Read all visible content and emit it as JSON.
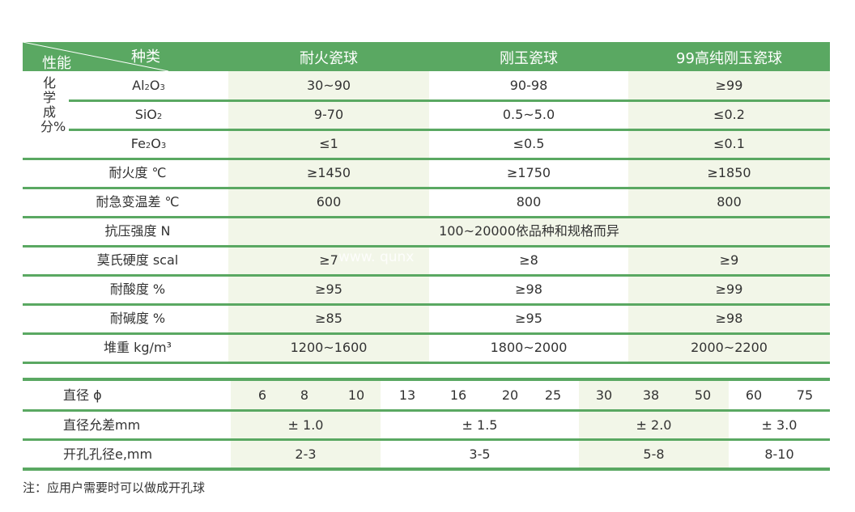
{
  "table1": {
    "header": {
      "corner_top": "种类",
      "corner_bottom": "性能",
      "columns": [
        "耐火瓷球",
        "刚玉瓷球",
        "99高纯刚玉瓷球"
      ]
    },
    "chem_group_label": "化学成分%",
    "chem_rows": [
      {
        "label_main": "Al",
        "sub1": "2",
        "mid": "O",
        "sub2": "3",
        "values": [
          "30~90",
          "90-98",
          "≥99"
        ]
      },
      {
        "label_main": "SiO",
        "sub1": "2",
        "mid": "",
        "sub2": "",
        "values": [
          "9-70",
          "0.5~5.0",
          "≤0.2"
        ]
      },
      {
        "label_main": "Fe",
        "sub1": "2",
        "mid": "O",
        "sub2": "3",
        "values": [
          "≤1",
          "≤0.5",
          "≤0.1"
        ]
      }
    ],
    "rows": [
      {
        "label": "耐火度 ℃",
        "values": [
          "≥1450",
          "≥1750",
          "≥1850"
        ]
      },
      {
        "label": "耐急变温差 ℃",
        "values": [
          "600",
          "800",
          "800"
        ]
      },
      {
        "label": "抗压强度 N",
        "span_value": "100~20000依品种和规格而异"
      },
      {
        "label": "莫氏硬度 scal",
        "values": [
          "≥7",
          "≥8",
          "≥9"
        ]
      },
      {
        "label": "耐酸度 %",
        "values": [
          "≥95",
          "≥98",
          "≥99"
        ]
      },
      {
        "label": "耐碱度 %",
        "values": [
          "≥85",
          "≥95",
          "≥98"
        ]
      },
      {
        "label": "堆重 kg/m³",
        "values": [
          "1200~1600",
          "1800~2000",
          "2000~2200"
        ]
      }
    ]
  },
  "watermark": "www. qunx",
  "table2": {
    "diameter_label": "直径 ϕ",
    "diameters": [
      "6",
      "8",
      "10",
      "13",
      "16",
      "20",
      "25",
      "30",
      "38",
      "50",
      "60",
      "75"
    ],
    "tolerance_label": "直径允差mm",
    "tolerances": [
      "± 1.0",
      "± 1.5",
      "± 2.0",
      "± 3.0"
    ],
    "hole_label": "开孔孔径e,mm",
    "holes": [
      "2-3",
      "3-5",
      "5-8",
      "8-10"
    ]
  },
  "note": "注：应用户需要时可以做成开孔球",
  "colors": {
    "accent_green": "#5aa862",
    "shade": "#f2f6e8"
  }
}
